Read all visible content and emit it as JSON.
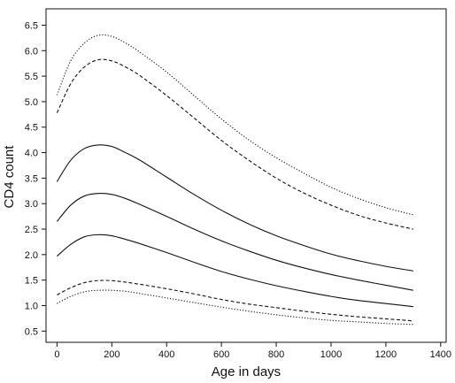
{
  "chart_data": {
    "type": "line",
    "title": "",
    "xlabel": "Age in days",
    "ylabel": "CD4 count",
    "xlim": [
      -40,
      1420
    ],
    "ylim": [
      0.28,
      6.82
    ],
    "xticks": [
      0,
      200,
      400,
      600,
      800,
      1000,
      1200,
      1400
    ],
    "yticks": [
      0.5,
      1.0,
      1.5,
      2.0,
      2.5,
      3.0,
      3.5,
      4.0,
      4.5,
      5.0,
      5.5,
      6.0,
      6.5
    ],
    "ytick_labels": [
      "0.5",
      "1.0",
      "1.5",
      "2.0",
      "2.5",
      "3.0",
      "3.5",
      "4.0",
      "4.5",
      "5.0",
      "5.5",
      "6.0",
      "6.5"
    ],
    "grid": false,
    "legend": "none",
    "x": [
      0,
      50,
      100,
      150,
      200,
      250,
      300,
      400,
      500,
      600,
      700,
      800,
      900,
      1000,
      1100,
      1200,
      1300
    ],
    "series": [
      {
        "style": "dotted",
        "values": [
          5.13,
          5.8,
          6.15,
          6.3,
          6.28,
          6.15,
          5.98,
          5.58,
          5.12,
          4.66,
          4.25,
          3.9,
          3.6,
          3.32,
          3.1,
          2.92,
          2.78
        ]
      },
      {
        "style": "dashed",
        "values": [
          4.78,
          5.35,
          5.68,
          5.82,
          5.8,
          5.68,
          5.52,
          5.12,
          4.68,
          4.24,
          3.85,
          3.5,
          3.21,
          2.97,
          2.77,
          2.62,
          2.5
        ]
      },
      {
        "style": "solid",
        "values": [
          3.43,
          3.85,
          4.08,
          4.15,
          4.12,
          4.0,
          3.86,
          3.52,
          3.18,
          2.87,
          2.6,
          2.37,
          2.18,
          2.01,
          1.88,
          1.77,
          1.68
        ]
      },
      {
        "style": "solid",
        "values": [
          2.65,
          2.97,
          3.15,
          3.2,
          3.18,
          3.1,
          2.99,
          2.75,
          2.5,
          2.27,
          2.07,
          1.89,
          1.74,
          1.61,
          1.5,
          1.4,
          1.3
        ]
      },
      {
        "style": "solid",
        "values": [
          1.97,
          2.2,
          2.35,
          2.39,
          2.37,
          2.3,
          2.22,
          2.04,
          1.85,
          1.67,
          1.52,
          1.39,
          1.28,
          1.18,
          1.1,
          1.04,
          0.98
        ]
      },
      {
        "style": "dashed",
        "values": [
          1.21,
          1.35,
          1.45,
          1.49,
          1.49,
          1.46,
          1.42,
          1.33,
          1.23,
          1.12,
          1.03,
          0.96,
          0.89,
          0.83,
          0.78,
          0.74,
          0.7
        ]
      },
      {
        "style": "dotted",
        "values": [
          1.04,
          1.18,
          1.27,
          1.3,
          1.3,
          1.28,
          1.24,
          1.15,
          1.06,
          0.97,
          0.89,
          0.82,
          0.76,
          0.71,
          0.68,
          0.65,
          0.63
        ]
      }
    ]
  }
}
